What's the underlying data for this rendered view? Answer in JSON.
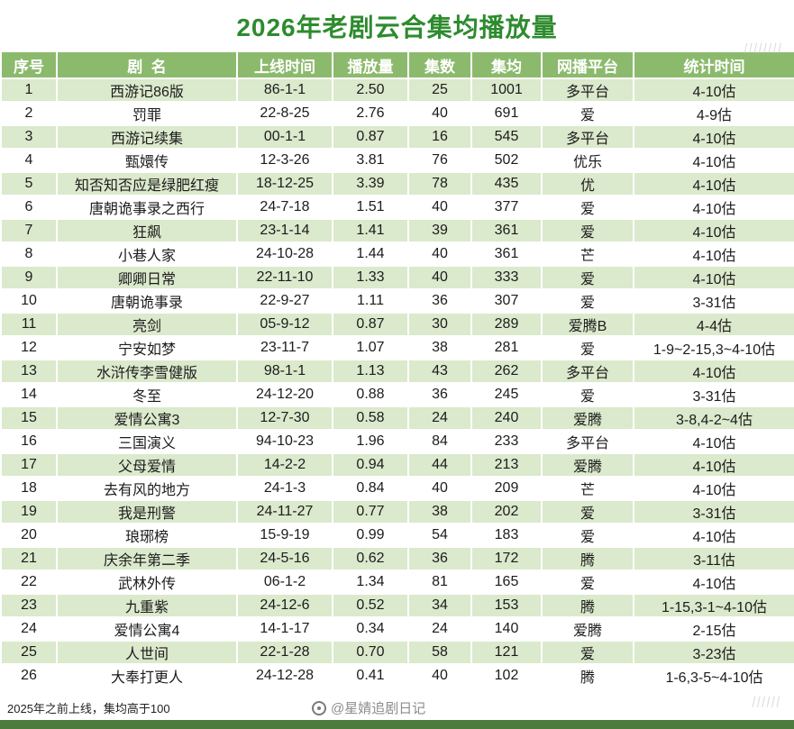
{
  "title": "2026年老剧云合集均播放量",
  "chart_data": {
    "type": "table",
    "title": "2026年老剧云合集均播放量",
    "columns": [
      "序号",
      "剧  名",
      "上线时间",
      "播放量",
      "集数",
      "集均",
      "网播平台",
      "统计时间"
    ],
    "rows": [
      [
        "1",
        "西游记86版",
        "86-1-1",
        "2.50",
        "25",
        "1001",
        "多平台",
        "4-10估"
      ],
      [
        "2",
        "罚罪",
        "22-8-25",
        "2.76",
        "40",
        "691",
        "爱",
        "4-9估"
      ],
      [
        "3",
        "西游记续集",
        "00-1-1",
        "0.87",
        "16",
        "545",
        "多平台",
        "4-10估"
      ],
      [
        "4",
        "甄嬛传",
        "12-3-26",
        "3.81",
        "76",
        "502",
        "优乐",
        "4-10估"
      ],
      [
        "5",
        "知否知否应是绿肥红瘦",
        "18-12-25",
        "3.39",
        "78",
        "435",
        "优",
        "4-10估"
      ],
      [
        "6",
        "唐朝诡事录之西行",
        "24-7-18",
        "1.51",
        "40",
        "377",
        "爱",
        "4-10估"
      ],
      [
        "7",
        "狂飙",
        "23-1-14",
        "1.41",
        "39",
        "361",
        "爱",
        "4-10估"
      ],
      [
        "8",
        "小巷人家",
        "24-10-28",
        "1.44",
        "40",
        "361",
        "芒",
        "4-10估"
      ],
      [
        "9",
        "卿卿日常",
        "22-11-10",
        "1.33",
        "40",
        "333",
        "爱",
        "4-10估"
      ],
      [
        "10",
        "唐朝诡事录",
        "22-9-27",
        "1.11",
        "36",
        "307",
        "爱",
        "3-31估"
      ],
      [
        "11",
        "亮剑",
        "05-9-12",
        "0.87",
        "30",
        "289",
        "爱腾B",
        "4-4估"
      ],
      [
        "12",
        "宁安如梦",
        "23-11-7",
        "1.07",
        "38",
        "281",
        "爱",
        "1-9~2-15,3~4-10估"
      ],
      [
        "13",
        "水浒传李雪健版",
        "98-1-1",
        "1.13",
        "43",
        "262",
        "多平台",
        "4-10估"
      ],
      [
        "14",
        "冬至",
        "24-12-20",
        "0.88",
        "36",
        "245",
        "爱",
        "3-31估"
      ],
      [
        "15",
        "爱情公寓3",
        "12-7-30",
        "0.58",
        "24",
        "240",
        "爱腾",
        "3-8,4-2~4估"
      ],
      [
        "16",
        "三国演义",
        "94-10-23",
        "1.96",
        "84",
        "233",
        "多平台",
        "4-10估"
      ],
      [
        "17",
        "父母爱情",
        "14-2-2",
        "0.94",
        "44",
        "213",
        "爱腾",
        "4-10估"
      ],
      [
        "18",
        "去有风的地方",
        "24-1-3",
        "0.84",
        "40",
        "209",
        "芒",
        "4-10估"
      ],
      [
        "19",
        "我是刑警",
        "24-11-27",
        "0.77",
        "38",
        "202",
        "爱",
        "3-31估"
      ],
      [
        "20",
        "琅琊榜",
        "15-9-19",
        "0.99",
        "54",
        "183",
        "爱",
        "4-10估"
      ],
      [
        "21",
        "庆余年第二季",
        "24-5-16",
        "0.62",
        "36",
        "172",
        "腾",
        "3-11估"
      ],
      [
        "22",
        "武林外传",
        "06-1-2",
        "1.34",
        "81",
        "165",
        "爱",
        "4-10估"
      ],
      [
        "23",
        "九重紫",
        "24-12-6",
        "0.52",
        "34",
        "153",
        "腾",
        "1-15,3-1~4-10估"
      ],
      [
        "24",
        "爱情公寓4",
        "14-1-17",
        "0.34",
        "24",
        "140",
        "爱腾",
        "2-15估"
      ],
      [
        "25",
        "人世间",
        "22-1-28",
        "0.70",
        "58",
        "121",
        "爱",
        "3-23估"
      ],
      [
        "26",
        "大奉打更人",
        "24-12-28",
        "0.41",
        "40",
        "102",
        "腾",
        "1-6,3-5~4-10估"
      ]
    ]
  },
  "footer": {
    "note": "2025年之前上线，集均高于100",
    "credit": "@星婧追剧日记"
  },
  "watermarks": {
    "top_right": "||||||||",
    "bottom_right": "||||||"
  },
  "colors": {
    "title_green": "#2e8b2e",
    "header_bg": "#8cba6d",
    "row_alt": "#dbe9cc",
    "bar_green": "#4d7a3d",
    "cell_text": "#1c1c1c"
  }
}
